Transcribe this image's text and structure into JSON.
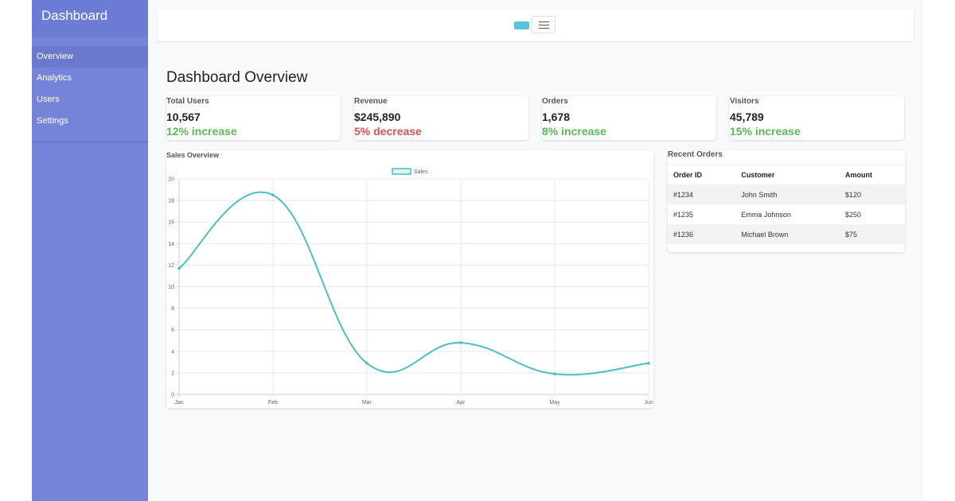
{
  "sidebar": {
    "title": "Dashboard",
    "nav": [
      "Overview",
      "Analytics",
      "Users",
      "Settings"
    ]
  },
  "page_title": "Dashboard Overview",
  "stats": [
    {
      "label": "Total Users",
      "value": "10,567",
      "change": "12% increase",
      "color": "#5cb85c"
    },
    {
      "label": "Revenue",
      "value": "$245,890",
      "change": "5% decrease",
      "color": "#d9534f"
    },
    {
      "label": "Orders",
      "value": "1,678",
      "change": "8% increase",
      "color": "#5cb85c"
    },
    {
      "label": "Visitors",
      "value": "45,789",
      "change": "15% increase",
      "color": "#5cb85c"
    }
  ],
  "chart_data": {
    "type": "line",
    "title": "Sales Overview",
    "categories": [
      "Jan",
      "Feb",
      "Mar",
      "Apr",
      "May",
      "Jun"
    ],
    "series": [
      {
        "name": "Sales",
        "color": "#4bc0c0",
        "values": [
          11.7,
          18.5,
          2.9,
          4.8,
          1.9,
          2.9
        ]
      }
    ],
    "ylim": [
      0,
      20
    ],
    "yticks": [
      0,
      2,
      4,
      6,
      8,
      10,
      12,
      14,
      16,
      18,
      20
    ],
    "grid": true
  },
  "orders": {
    "title": "Recent Orders",
    "headers": [
      "Order ID",
      "Customer",
      "Amount"
    ],
    "rows": [
      [
        "#1234",
        "John Smith",
        "$120"
      ],
      [
        "#1235",
        "Emma Johnson",
        "$250"
      ],
      [
        "#1236",
        "Michael Brown",
        "$75"
      ]
    ]
  }
}
